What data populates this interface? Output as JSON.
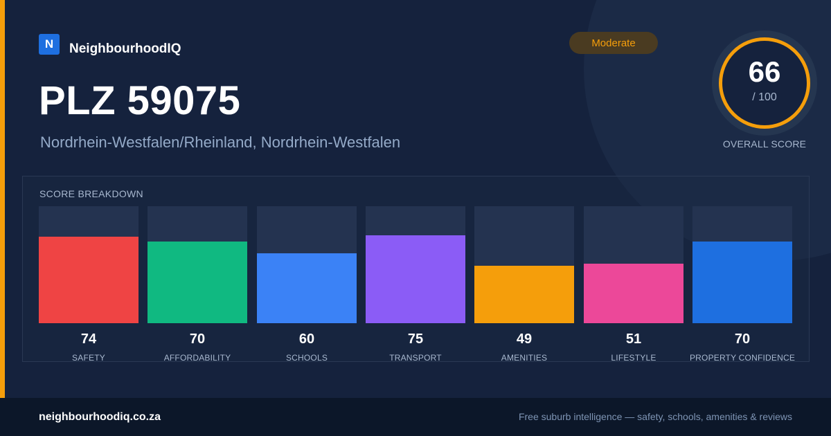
{
  "brand": {
    "logo_letter": "N",
    "name": "NeighbourhoodIQ"
  },
  "header": {
    "title": "PLZ 59075",
    "subtitle": "Nordrhein-Westfalen/Rheinland, Nordrhein-Westfalen",
    "badge": "Moderate"
  },
  "overall_score": {
    "value": "66",
    "max": "/ 100",
    "caption": "OVERALL SCORE"
  },
  "breakdown": {
    "title": "SCORE BREAKDOWN",
    "items": [
      {
        "label": "SAFETY",
        "value": "74",
        "color": "#ef4444"
      },
      {
        "label": "AFFORDABILITY",
        "value": "70",
        "color": "#10b981"
      },
      {
        "label": "SCHOOLS",
        "value": "60",
        "color": "#3b82f6"
      },
      {
        "label": "TRANSPORT",
        "value": "75",
        "color": "#8b5cf6"
      },
      {
        "label": "AMENITIES",
        "value": "49",
        "color": "#f59e0b"
      },
      {
        "label": "LIFESTYLE",
        "value": "51",
        "color": "#ec4899"
      },
      {
        "label": "PROPERTY CONFIDENCE",
        "value": "70",
        "color": "#1e6fe0"
      }
    ]
  },
  "footer": {
    "url": "neighbourhoodiq.co.za",
    "tagline": "Free suburb intelligence — safety, schools, amenities & reviews"
  },
  "colors": {
    "accent": "#f59e0b",
    "background": "#15223d",
    "brand_blue": "#1e6fe0"
  }
}
